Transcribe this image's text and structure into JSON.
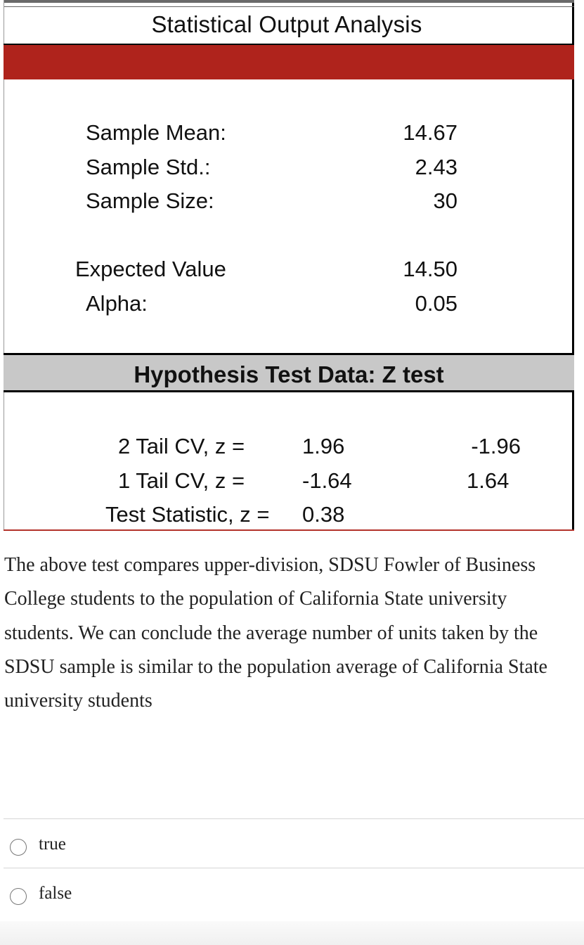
{
  "sheet": {
    "title": "Statistical Output Analysis",
    "sample_mean_label": "Sample Mean:",
    "sample_mean_value": "14.67",
    "sample_std_label": "Sample Std.:",
    "sample_std_value": "2.43",
    "sample_size_label": "Sample Size:",
    "sample_size_value": "30",
    "expected_label": "Expected Value",
    "expected_value": "14.50",
    "alpha_label": "Alpha:",
    "alpha_value": "0.05",
    "hyp_header": "Hypothesis Test Data: Z test",
    "two_tail_label": "2 Tail CV, z =",
    "two_tail_value1": "1.96",
    "two_tail_value2": "-1.96",
    "one_tail_label": "1 Tail CV, z =",
    "one_tail_value1": "-1.64",
    "one_tail_value2": "1.64",
    "test_stat_label": "Test Statistic, z =",
    "test_stat_value": "0.38",
    "colors": {
      "red_band": "#af231c",
      "grey_band": "#c8c8c8"
    }
  },
  "question": {
    "text": "The above test compares upper-division, SDSU Fowler of Business College students to the population of California State university students. We can conclude the average number of units taken by the SDSU sample is similar to the population average of California State university students"
  },
  "options": [
    {
      "label": "true"
    },
    {
      "label": "false"
    }
  ]
}
